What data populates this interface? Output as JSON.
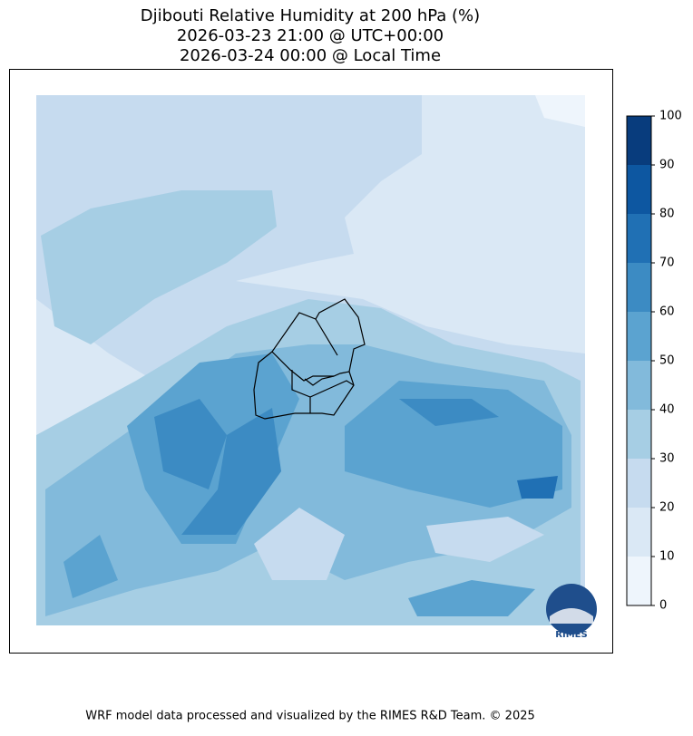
{
  "title": [
    "Djibouti Relative Humidity at 200 hPa (%)",
    "2026-03-23 21:00 @ UTC+00:00",
    "2026-03-24 00:00 @ Local Time"
  ],
  "colorbar": {
    "ylim": [
      0,
      100
    ],
    "yticks": [
      0,
      10,
      20,
      30,
      40,
      50,
      60,
      70,
      80,
      90,
      100
    ],
    "colors": [
      "#eef5fc",
      "#dae8f5",
      "#c6dbef",
      "#a6cee4",
      "#82badb",
      "#5ba3d0",
      "#3c8bc3",
      "#2070b4",
      "#0d57a1",
      "#083c7d"
    ]
  },
  "logo": "RIMES",
  "footer": "WRF model data processed and visualized by the RIMES R&D Team. © 2025"
}
